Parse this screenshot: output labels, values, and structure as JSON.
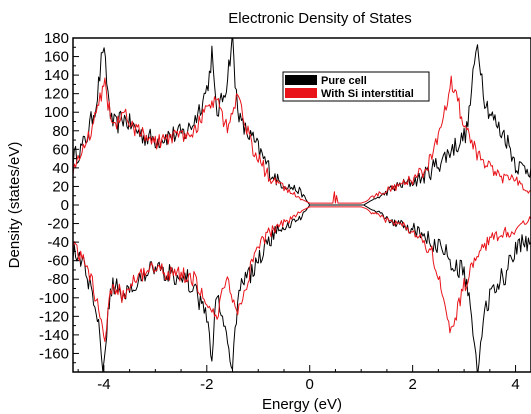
{
  "chart_data": {
    "type": "line",
    "title": "Electronic Density of States",
    "xlabel": "Energy (eV)",
    "ylabel": "Density (states/eV)",
    "xlim": [
      -4.6,
      4.3
    ],
    "ylim": [
      -180,
      180
    ],
    "x_ticks": [
      -4,
      -2,
      0,
      2,
      4
    ],
    "y_ticks": [
      180,
      160,
      140,
      120,
      100,
      80,
      60,
      40,
      20,
      0,
      -20,
      -40,
      -60,
      -80,
      -100,
      -120,
      -140,
      -160
    ],
    "grid": false,
    "legend": {
      "position": "top-right"
    },
    "series": [
      {
        "name": "Pure cell",
        "color": "#000000",
        "spin_up": {
          "x": [
            -4.6,
            -4.45,
            -4.35,
            -4.25,
            -4.15,
            -4.08,
            -4.02,
            -3.97,
            -3.92,
            -3.85,
            -3.75,
            -3.65,
            -3.55,
            -3.45,
            -3.35,
            -3.25,
            -3.1,
            -2.95,
            -2.8,
            -2.6,
            -2.4,
            -2.25,
            -2.1,
            -2.0,
            -1.95,
            -1.9,
            -1.85,
            -1.8,
            -1.72,
            -1.62,
            -1.55,
            -1.5,
            -1.45,
            -1.35,
            -1.25,
            -1.1,
            -0.95,
            -0.85,
            -0.75,
            -0.6,
            -0.4,
            -0.2,
            -0.1,
            0.0,
            1.05,
            1.2,
            1.4,
            1.6,
            1.8,
            2.0,
            2.2,
            2.4,
            2.6,
            2.75,
            2.85,
            2.95,
            3.05,
            3.12,
            3.2,
            3.26,
            3.32,
            3.4,
            3.5,
            3.6,
            3.7,
            3.8,
            3.9,
            4.0,
            4.1,
            4.2,
            4.3
          ],
          "y": [
            50,
            60,
            70,
            90,
            110,
            140,
            170,
            150,
            120,
            90,
            85,
            95,
            90,
            85,
            80,
            75,
            72,
            70,
            74,
            76,
            78,
            90,
            110,
            125,
            140,
            165,
            120,
            100,
            110,
            130,
            160,
            180,
            130,
            90,
            80,
            70,
            55,
            45,
            35,
            25,
            20,
            15,
            8,
            0,
            0,
            5,
            10,
            18,
            22,
            25,
            30,
            40,
            50,
            60,
            65,
            70,
            80,
            110,
            150,
            175,
            150,
            115,
            100,
            90,
            80,
            75,
            60,
            45,
            40,
            40,
            40
          ]
        },
        "spin_down": {
          "x": [
            -4.6,
            -4.45,
            -4.35,
            -4.25,
            -4.15,
            -4.08,
            -4.02,
            -3.97,
            -3.92,
            -3.85,
            -3.75,
            -3.65,
            -3.55,
            -3.45,
            -3.35,
            -3.25,
            -3.1,
            -2.95,
            -2.8,
            -2.6,
            -2.4,
            -2.25,
            -2.1,
            -2.0,
            -1.95,
            -1.9,
            -1.85,
            -1.8,
            -1.72,
            -1.62,
            -1.55,
            -1.5,
            -1.45,
            -1.35,
            -1.25,
            -1.1,
            -0.95,
            -0.85,
            -0.75,
            -0.6,
            -0.4,
            -0.2,
            -0.1,
            0.0,
            1.05,
            1.2,
            1.4,
            1.6,
            1.8,
            2.0,
            2.2,
            2.4,
            2.6,
            2.75,
            2.85,
            2.95,
            3.05,
            3.12,
            3.2,
            3.26,
            3.32,
            3.4,
            3.5,
            3.6,
            3.7,
            3.8,
            3.9,
            4.0,
            4.1,
            4.2,
            4.3
          ],
          "y": [
            -50,
            -60,
            -70,
            -90,
            -110,
            -140,
            -170,
            -150,
            -120,
            -90,
            -85,
            -95,
            -90,
            -85,
            -80,
            -75,
            -72,
            -70,
            -74,
            -76,
            -78,
            -90,
            -110,
            -125,
            -140,
            -165,
            -120,
            -100,
            -110,
            -130,
            -160,
            -180,
            -130,
            -90,
            -80,
            -70,
            -55,
            -45,
            -35,
            -25,
            -20,
            -15,
            -8,
            0,
            0,
            -5,
            -10,
            -18,
            -22,
            -25,
            -30,
            -40,
            -50,
            -60,
            -65,
            -70,
            -80,
            -110,
            -150,
            -175,
            -150,
            -115,
            -100,
            -90,
            -80,
            -75,
            -60,
            -45,
            -40,
            -40,
            -40
          ]
        }
      },
      {
        "name": "With Si interstitial",
        "color": "#e8141a",
        "spin_up": {
          "x": [
            -4.6,
            -4.45,
            -4.35,
            -4.25,
            -4.15,
            -4.05,
            -3.98,
            -3.92,
            -3.85,
            -3.75,
            -3.65,
            -3.55,
            -3.45,
            -3.35,
            -3.25,
            -3.1,
            -2.95,
            -2.8,
            -2.6,
            -2.4,
            -2.25,
            -2.1,
            -2.0,
            -1.9,
            -1.8,
            -1.7,
            -1.6,
            -1.5,
            -1.4,
            -1.3,
            -1.2,
            -1.1,
            -0.95,
            -0.85,
            -0.75,
            -0.6,
            -0.45,
            -0.3,
            -0.15,
            0.0,
            0.45,
            0.48,
            0.5,
            0.52,
            0.55,
            1.0,
            1.1,
            1.2,
            1.4,
            1.6,
            1.8,
            2.0,
            2.2,
            2.4,
            2.55,
            2.65,
            2.75,
            2.85,
            2.95,
            3.05,
            3.15,
            3.25,
            3.35,
            3.45,
            3.6,
            3.75,
            3.9,
            4.05,
            4.15,
            4.2,
            4.3
          ],
          "y": [
            40,
            55,
            65,
            80,
            100,
            120,
            145,
            110,
            95,
            85,
            100,
            95,
            85,
            80,
            75,
            70,
            68,
            72,
            74,
            76,
            80,
            95,
            105,
            110,
            120,
            95,
            85,
            100,
            115,
            95,
            80,
            60,
            45,
            35,
            28,
            22,
            18,
            12,
            6,
            2,
            2,
            12,
            2,
            10,
            2,
            2,
            4,
            8,
            14,
            18,
            22,
            28,
            35,
            55,
            85,
            110,
            135,
            120,
            95,
            80,
            65,
            55,
            45,
            40,
            35,
            30,
            28,
            25,
            20,
            18,
            15
          ]
        },
        "spin_down": {
          "x": [
            -4.6,
            -4.45,
            -4.35,
            -4.25,
            -4.15,
            -4.05,
            -3.98,
            -3.92,
            -3.85,
            -3.75,
            -3.65,
            -3.55,
            -3.45,
            -3.35,
            -3.25,
            -3.1,
            -2.95,
            -2.8,
            -2.6,
            -2.4,
            -2.25,
            -2.1,
            -2.0,
            -1.9,
            -1.8,
            -1.7,
            -1.6,
            -1.5,
            -1.4,
            -1.3,
            -1.2,
            -1.1,
            -0.95,
            -0.85,
            -0.75,
            -0.6,
            -0.45,
            -0.3,
            -0.15,
            0.0,
            1.0,
            1.1,
            1.2,
            1.4,
            1.6,
            1.8,
            2.0,
            2.2,
            2.4,
            2.55,
            2.65,
            2.75,
            2.85,
            2.95,
            3.05,
            3.15,
            3.25,
            3.35,
            3.45,
            3.6,
            3.75,
            3.9,
            4.05,
            4.15,
            4.2,
            4.3
          ],
          "y": [
            -40,
            -55,
            -65,
            -80,
            -100,
            -120,
            -145,
            -110,
            -95,
            -85,
            -100,
            -95,
            -85,
            -80,
            -75,
            -70,
            -68,
            -72,
            -74,
            -76,
            -80,
            -95,
            -105,
            -110,
            -120,
            -95,
            -85,
            -100,
            -115,
            -95,
            -80,
            -60,
            -45,
            -35,
            -28,
            -22,
            -18,
            -12,
            -6,
            -2,
            -2,
            -4,
            -8,
            -14,
            -18,
            -22,
            -28,
            -35,
            -55,
            -85,
            -110,
            -135,
            -120,
            -95,
            -80,
            -65,
            -55,
            -45,
            -40,
            -35,
            -30,
            -28,
            -25,
            -20,
            -18,
            -15
          ]
        }
      }
    ]
  }
}
